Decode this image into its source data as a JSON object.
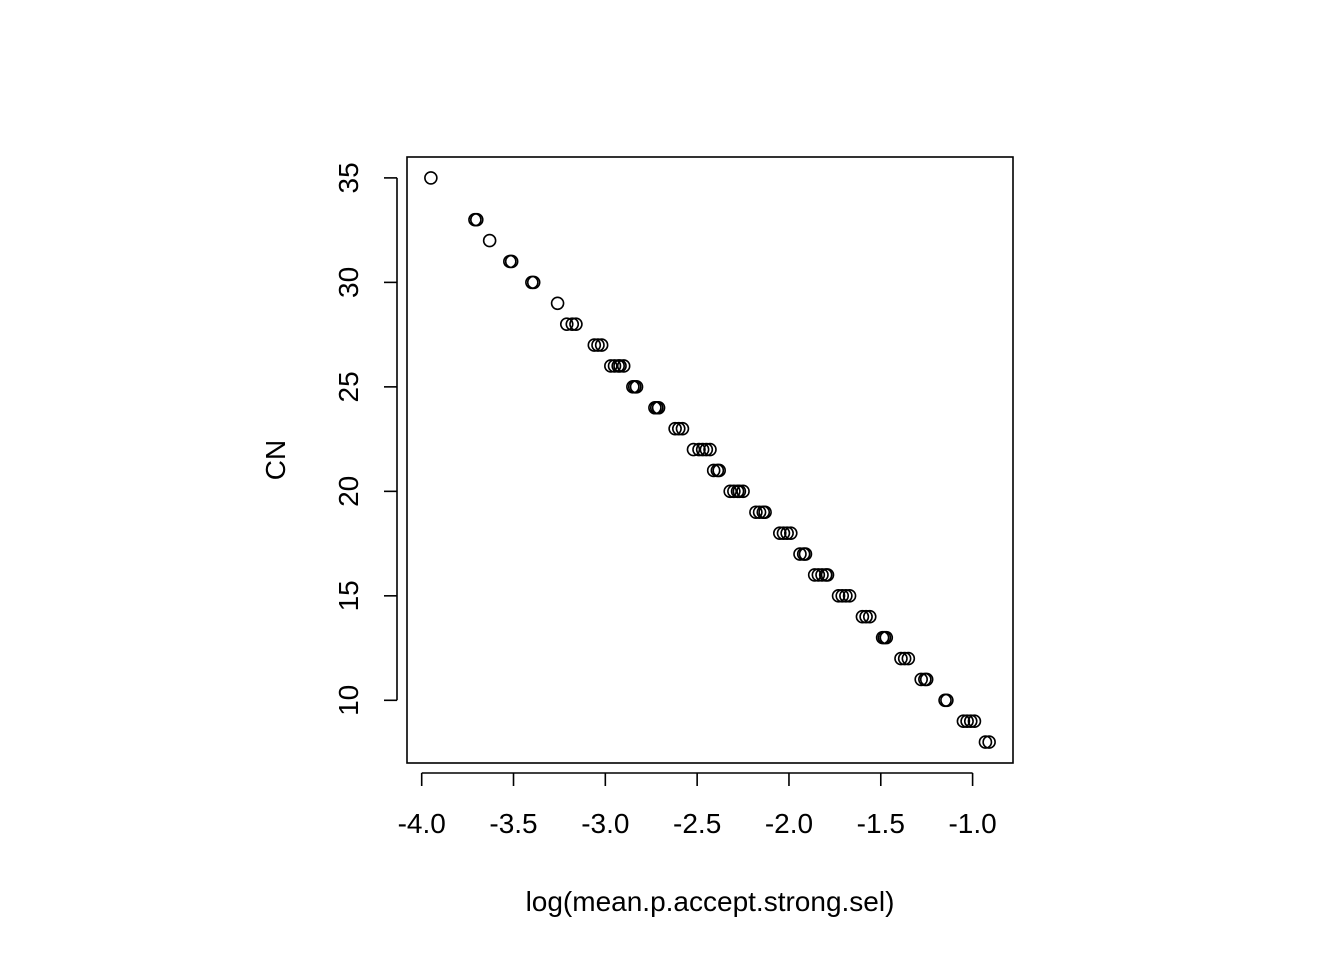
{
  "chart_data": {
    "type": "scatter",
    "xlabel": "log(mean.p.accept.strong.sel)",
    "ylabel": "CN",
    "xlim": [
      -4.08,
      -0.78
    ],
    "ylim": [
      7.0,
      36.0
    ],
    "xticks": [
      -4.0,
      -3.5,
      -3.0,
      -2.5,
      -2.0,
      -1.5,
      -1.0
    ],
    "xtick_labels": [
      "-4.0",
      "-3.5",
      "-3.0",
      "-2.5",
      "-2.0",
      "-1.5",
      "-1.0"
    ],
    "yticks": [
      10,
      15,
      20,
      25,
      30,
      35
    ],
    "ytick_labels": [
      "10",
      "15",
      "20",
      "25",
      "30",
      "35"
    ],
    "grid": false,
    "marker": "open-circle",
    "series": [
      {
        "points": [
          [
            -3.95,
            35
          ],
          [
            -3.71,
            33
          ],
          [
            -3.7,
            33
          ],
          [
            -3.63,
            32
          ],
          [
            -3.52,
            31
          ],
          [
            -3.51,
            31
          ],
          [
            -3.4,
            30
          ],
          [
            -3.39,
            30
          ],
          [
            -3.26,
            29
          ],
          [
            -3.21,
            28
          ],
          [
            -3.18,
            28
          ],
          [
            -3.16,
            28
          ],
          [
            -3.06,
            27
          ],
          [
            -3.04,
            27
          ],
          [
            -3.02,
            27
          ],
          [
            -2.97,
            26
          ],
          [
            -2.95,
            26
          ],
          [
            -2.93,
            26
          ],
          [
            -2.92,
            26
          ],
          [
            -2.9,
            26
          ],
          [
            -2.85,
            25
          ],
          [
            -2.84,
            25
          ],
          [
            -2.83,
            25
          ],
          [
            -2.73,
            24
          ],
          [
            -2.72,
            24
          ],
          [
            -2.71,
            24
          ],
          [
            -2.62,
            23
          ],
          [
            -2.6,
            23
          ],
          [
            -2.58,
            23
          ],
          [
            -2.52,
            22
          ],
          [
            -2.49,
            22
          ],
          [
            -2.47,
            22
          ],
          [
            -2.45,
            22
          ],
          [
            -2.43,
            22
          ],
          [
            -2.41,
            21
          ],
          [
            -2.39,
            21
          ],
          [
            -2.38,
            21
          ],
          [
            -2.32,
            20
          ],
          [
            -2.3,
            20
          ],
          [
            -2.28,
            20
          ],
          [
            -2.27,
            20
          ],
          [
            -2.25,
            20
          ],
          [
            -2.18,
            19
          ],
          [
            -2.16,
            19
          ],
          [
            -2.14,
            19
          ],
          [
            -2.13,
            19
          ],
          [
            -2.05,
            18
          ],
          [
            -2.03,
            18
          ],
          [
            -2.01,
            18
          ],
          [
            -1.99,
            18
          ],
          [
            -1.94,
            17
          ],
          [
            -1.92,
            17
          ],
          [
            -1.91,
            17
          ],
          [
            -1.86,
            16
          ],
          [
            -1.84,
            16
          ],
          [
            -1.82,
            16
          ],
          [
            -1.8,
            16
          ],
          [
            -1.79,
            16
          ],
          [
            -1.73,
            15
          ],
          [
            -1.71,
            15
          ],
          [
            -1.69,
            15
          ],
          [
            -1.67,
            15
          ],
          [
            -1.6,
            14
          ],
          [
            -1.58,
            14
          ],
          [
            -1.56,
            14
          ],
          [
            -1.49,
            13
          ],
          [
            -1.48,
            13
          ],
          [
            -1.47,
            13
          ],
          [
            -1.39,
            12
          ],
          [
            -1.37,
            12
          ],
          [
            -1.35,
            12
          ],
          [
            -1.28,
            11
          ],
          [
            -1.26,
            11
          ],
          [
            -1.25,
            11
          ],
          [
            -1.15,
            10
          ],
          [
            -1.14,
            10
          ],
          [
            -1.05,
            9
          ],
          [
            -1.03,
            9
          ],
          [
            -1.01,
            9
          ],
          [
            -0.99,
            9
          ],
          [
            -0.93,
            8
          ],
          [
            -0.91,
            8
          ]
        ]
      }
    ]
  }
}
